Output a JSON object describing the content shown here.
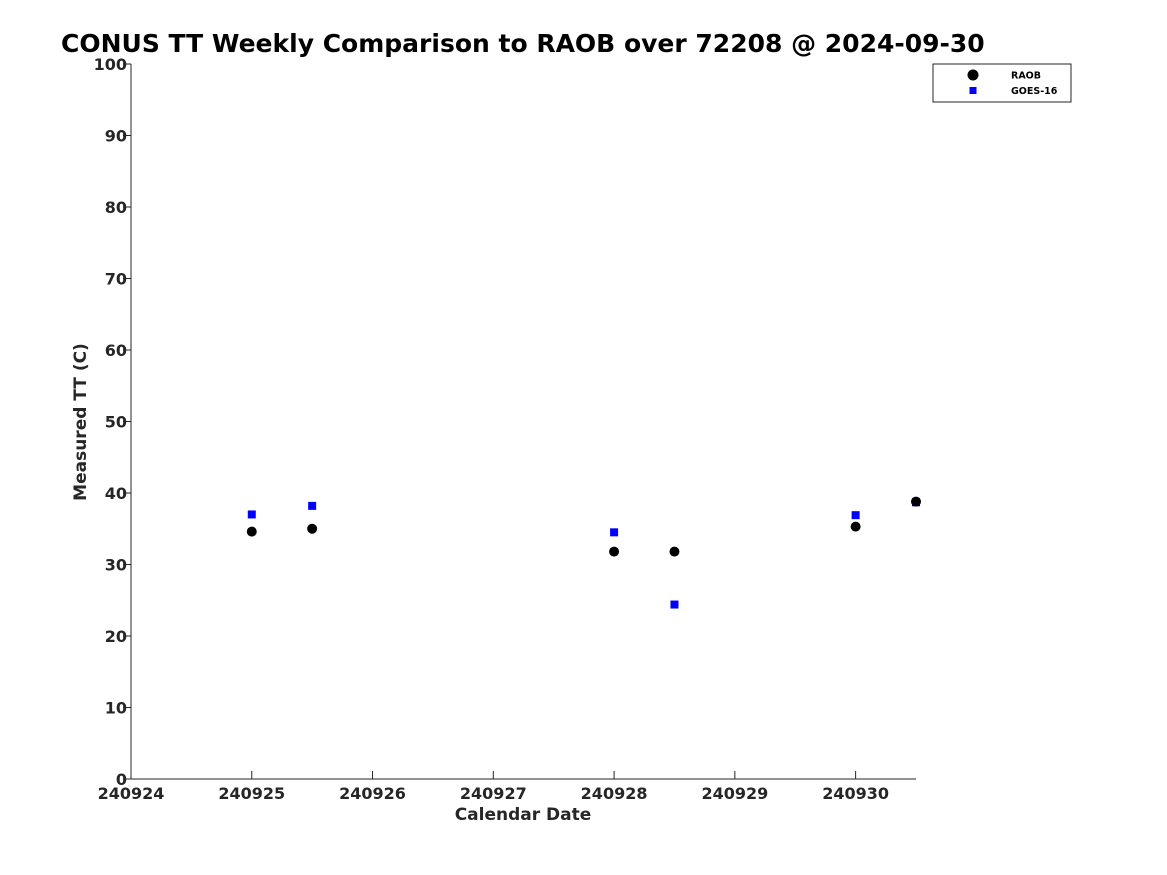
{
  "chart_data": {
    "type": "scatter",
    "title": "CONUS TT Weekly Comparison to RAOB over 72208 @ 2024-09-30",
    "xlabel": "Calendar Date",
    "ylabel": "Measured TT (C)",
    "xlim": [
      "2024-09-24",
      "2024-09-30T12:00"
    ],
    "ylim": [
      0,
      100
    ],
    "x_ticks": [
      {
        "value": "2024-09-24",
        "label": "240924"
      },
      {
        "value": "2024-09-25",
        "label": "240925"
      },
      {
        "value": "2024-09-26",
        "label": "240926"
      },
      {
        "value": "2024-09-27",
        "label": "240927"
      },
      {
        "value": "2024-09-28",
        "label": "240928"
      },
      {
        "value": "2024-09-29",
        "label": "240929"
      },
      {
        "value": "2024-09-30",
        "label": "240930"
      }
    ],
    "y_ticks": [
      0,
      10,
      20,
      30,
      40,
      50,
      60,
      70,
      80,
      90,
      100
    ],
    "grid": false,
    "legend_position": "top-right",
    "series": [
      {
        "name": "RAOB",
        "marker": "circle",
        "color": "#000000",
        "points": [
          {
            "x": "2024-09-25T00:00",
            "y": 34.6
          },
          {
            "x": "2024-09-25T12:00",
            "y": 35.0
          },
          {
            "x": "2024-09-28T00:00",
            "y": 31.8
          },
          {
            "x": "2024-09-28T12:00",
            "y": 31.8
          },
          {
            "x": "2024-09-30T00:00",
            "y": 35.3
          },
          {
            "x": "2024-09-30T12:00",
            "y": 38.8
          }
        ]
      },
      {
        "name": "GOES-16",
        "marker": "square",
        "color": "#0000ff",
        "points": [
          {
            "x": "2024-09-25T00:00",
            "y": 37.0
          },
          {
            "x": "2024-09-25T12:00",
            "y": 38.2
          },
          {
            "x": "2024-09-28T00:00",
            "y": 34.5
          },
          {
            "x": "2024-09-28T12:00",
            "y": 24.4
          },
          {
            "x": "2024-09-30T00:00",
            "y": 36.9
          },
          {
            "x": "2024-09-30T12:00",
            "y": 38.7
          }
        ]
      }
    ]
  }
}
